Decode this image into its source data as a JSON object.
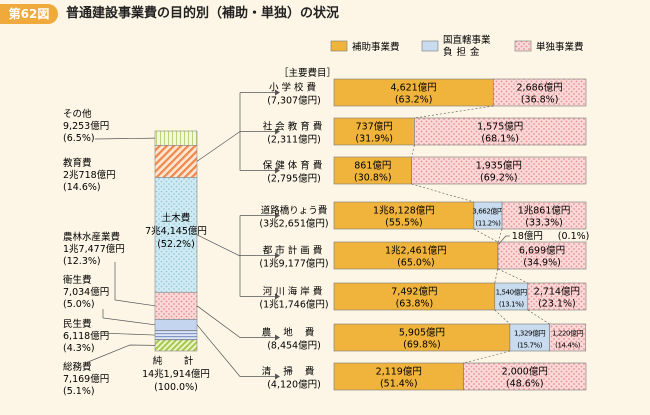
{
  "figure": {
    "number": "第62図",
    "title": "普通建設事業費の目的別（補助・単独）の状況"
  },
  "colors": {
    "hojo": "#f0b43c",
    "chokkatsu": "#c9dcef",
    "tandoku_bg": "#fbd9d9",
    "tandoku_dot": "#e78f8f",
    "line": "#555555",
    "page_bg": "#fdf6e6"
  },
  "chart_data": [
    {
      "type": "stacked_bar",
      "orientation": "vertical",
      "name": "stacked-total",
      "segments": [
        {
          "label": "総務費",
          "value_text": "7,169億円",
          "pct_text": "(5.1%)",
          "pct": 5.1,
          "pattern": "stripe-green"
        },
        {
          "label": "民生費",
          "value_text": "6,118億円",
          "pct_text": "(4.3%)",
          "pct": 4.3,
          "pattern": "stripe-blue"
        },
        {
          "label": "衛生費",
          "value_text": "7,034億円",
          "pct_text": "(5.0%)",
          "pct": 5.0,
          "pattern": "solid-blue"
        },
        {
          "label": "農林水産業費",
          "value_text": "1兆7,477億円",
          "pct_text": "(12.3%)",
          "pct": 12.3,
          "pattern": "dots-pink"
        },
        {
          "label": "土木費",
          "value_text": "7兆4,145億円",
          "pct_text": "(52.2%)",
          "pct": 52.2,
          "pattern": "dots-blue"
        },
        {
          "label": "教育費",
          "value_text": "2兆718億円",
          "pct_text": "(14.6%)",
          "pct": 14.6,
          "pattern": "hatch-orange"
        },
        {
          "label": "その他",
          "value_text": "9,253億円",
          "pct_text": "(6.5%)",
          "pct": 6.5,
          "pattern": "grid-green"
        }
      ],
      "total": {
        "label_line1": "純　計",
        "value_text": "14兆1,914億円",
        "pct_text": "(100.0%)"
      }
    },
    {
      "type": "stacked_bar",
      "orientation": "horizontal",
      "name": "breakdown",
      "header": "［主要費目］",
      "legend": [
        {
          "key": "hojo",
          "label": "補助事業費"
        },
        {
          "key": "chokkatsu",
          "label": "国直轄事業負担金"
        },
        {
          "key": "tandoku",
          "label": "単独事業費"
        }
      ],
      "rows": [
        {
          "label": "小学校費",
          "total_text": "(7,307億円)",
          "group": "教育費",
          "parts": [
            {
              "key": "hojo",
              "pct": 63.2,
              "amount": "4,621億円",
              "pct_text": "(63.2%)"
            },
            {
              "key": "tandoku",
              "pct": 36.8,
              "amount": "2,686億円",
              "pct_text": "(36.8%)"
            }
          ]
        },
        {
          "label": "社会教育費",
          "total_text": "(2,311億円)",
          "group": "教育費",
          "parts": [
            {
              "key": "hojo",
              "pct": 31.9,
              "amount": "737億円",
              "pct_text": "(31.9%)"
            },
            {
              "key": "tandoku",
              "pct": 68.1,
              "amount": "1,575億円",
              "pct_text": "(68.1%)"
            }
          ]
        },
        {
          "label": "保健体育費",
          "total_text": "(2,795億円)",
          "group": "教育費",
          "parts": [
            {
              "key": "hojo",
              "pct": 30.8,
              "amount": "861億円",
              "pct_text": "(30.8%)"
            },
            {
              "key": "tandoku",
              "pct": 69.2,
              "amount": "1,935億円",
              "pct_text": "(69.2%)"
            }
          ]
        },
        {
          "label": "道路橋りょう費",
          "total_text": "(3兆2,651億円)",
          "group": "土木費",
          "parts": [
            {
              "key": "hojo",
              "pct": 55.5,
              "amount": "1兆8,128億円",
              "pct_text": "(55.5%)"
            },
            {
              "key": "chokkatsu",
              "pct": 11.2,
              "amount": "3,662億円",
              "pct_text": "(11.2%)"
            },
            {
              "key": "tandoku",
              "pct": 33.3,
              "amount": "1兆861億円",
              "pct_text": "(33.3%)"
            }
          ]
        },
        {
          "label": "都市計画費",
          "total_text": "(1兆9,177億円)",
          "group": "土木費",
          "parts": [
            {
              "key": "hojo",
              "pct": 65.0,
              "amount": "1兆2,461億円",
              "pct_text": "(65.0%)"
            },
            {
              "key": "chokkatsu",
              "pct": 0.1,
              "amount": "18億円",
              "pct_text": "(0.1%)"
            },
            {
              "key": "tandoku",
              "pct": 34.9,
              "amount": "6,699億円",
              "pct_text": "(34.9%)"
            }
          ]
        },
        {
          "label": "河川海岸費",
          "total_text": "(1兆1,746億円)",
          "group": "土木費",
          "parts": [
            {
              "key": "hojo",
              "pct": 63.8,
              "amount": "7,492億円",
              "pct_text": "(63.8%)"
            },
            {
              "key": "chokkatsu",
              "pct": 13.1,
              "amount": "1,540億円",
              "pct_text": "(13.1%)"
            },
            {
              "key": "tandoku",
              "pct": 23.1,
              "amount": "2,714億円",
              "pct_text": "(23.1%)"
            }
          ]
        },
        {
          "label": "農地費",
          "total_text": "(8,454億円)",
          "group": "農林水産業費",
          "parts": [
            {
              "key": "hojo",
              "pct": 69.8,
              "amount": "5,905億円",
              "pct_text": "(69.8%)"
            },
            {
              "key": "chokkatsu",
              "pct": 15.7,
              "amount": "1,329億円",
              "pct_text": "(15.7%)"
            },
            {
              "key": "tandoku",
              "pct": 14.4,
              "amount": "1,220億円",
              "pct_text": "(14.4%)"
            }
          ]
        },
        {
          "label": "清掃費",
          "total_text": "(4,120億円)",
          "group": "衛生費",
          "parts": [
            {
              "key": "hojo",
              "pct": 51.4,
              "amount": "2,119億円",
              "pct_text": "(51.4%)"
            },
            {
              "key": "tandoku",
              "pct": 48.6,
              "amount": "2,000億円",
              "pct_text": "(48.6%)"
            }
          ]
        }
      ]
    }
  ]
}
